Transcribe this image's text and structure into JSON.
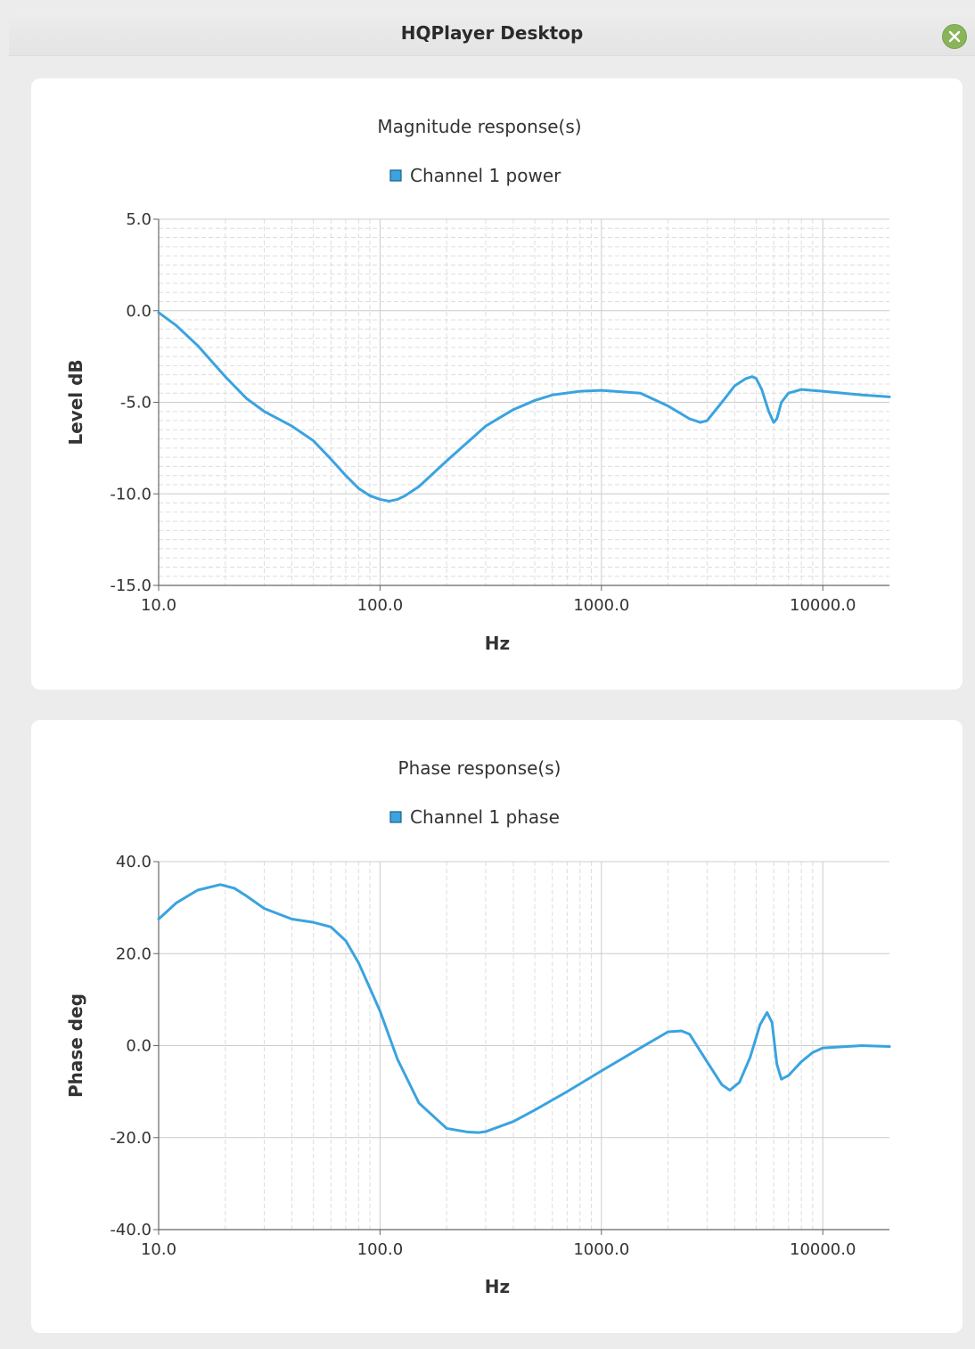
{
  "window": {
    "title": "HQPlayer Desktop"
  },
  "colors": {
    "series": "#3aa3e0",
    "grid_minor": "#dddddd",
    "grid_major": "#cccccc",
    "axis": "#666666"
  },
  "chart_data": [
    {
      "type": "line",
      "title": "Magnitude response(s)",
      "xlabel": "Hz",
      "ylabel": "Level dB",
      "xscale": "log",
      "xlim": [
        10,
        20000
      ],
      "ylim": [
        -15,
        5
      ],
      "xticks": [
        10,
        100,
        1000,
        10000
      ],
      "xtick_labels": [
        "10.0",
        "100.0",
        "1000.0",
        "10000.0"
      ],
      "yticks": [
        5,
        0,
        -5,
        -10,
        -15
      ],
      "ytick_labels": [
        "5.0",
        "0.0",
        "-5.0",
        "-10.0",
        "-15.0"
      ],
      "grid": "on (dense minor grid)",
      "legend_position": "top-center",
      "series": [
        {
          "name": "Channel 1 power",
          "color": "#3aa3e0",
          "x": [
            10,
            12,
            15,
            20,
            25,
            30,
            40,
            50,
            60,
            70,
            80,
            90,
            100,
            110,
            120,
            130,
            150,
            200,
            300,
            400,
            500,
            600,
            800,
            1000,
            1500,
            2000,
            2500,
            2800,
            3000,
            3500,
            4000,
            4500,
            4800,
            5000,
            5300,
            5700,
            6000,
            6200,
            6500,
            7000,
            8000,
            10000,
            15000,
            20000
          ],
          "y": [
            -0.1,
            -0.8,
            -1.9,
            -3.6,
            -4.8,
            -5.5,
            -6.3,
            -7.1,
            -8.1,
            -9.0,
            -9.7,
            -10.1,
            -10.3,
            -10.4,
            -10.3,
            -10.1,
            -9.6,
            -8.2,
            -6.3,
            -5.4,
            -4.9,
            -4.6,
            -4.4,
            -4.35,
            -4.5,
            -5.2,
            -5.9,
            -6.1,
            -6.0,
            -5.0,
            -4.1,
            -3.7,
            -3.6,
            -3.7,
            -4.3,
            -5.5,
            -6.1,
            -5.9,
            -5.0,
            -4.5,
            -4.3,
            -4.4,
            -4.6,
            -4.7
          ]
        }
      ]
    },
    {
      "type": "line",
      "title": "Phase response(s)",
      "xlabel": "Hz",
      "ylabel": "Phase deg",
      "xscale": "log",
      "xlim": [
        10,
        20000
      ],
      "ylim": [
        -40,
        40
      ],
      "xticks": [
        10,
        100,
        1000,
        10000
      ],
      "xtick_labels": [
        "10.0",
        "100.0",
        "1000.0",
        "10000.0"
      ],
      "yticks": [
        40,
        20,
        0,
        -20,
        -40
      ],
      "ytick_labels": [
        "40.0",
        "20.0",
        "0.0",
        "-20.0",
        "-40.0"
      ],
      "grid": "on (vertical decade lines dashed)",
      "legend_position": "top-center",
      "series": [
        {
          "name": "Channel 1 phase",
          "color": "#3aa3e0",
          "x": [
            10,
            12,
            15,
            19,
            22,
            25,
            30,
            40,
            50,
            60,
            70,
            80,
            90,
            100,
            110,
            120,
            150,
            200,
            250,
            280,
            300,
            400,
            500,
            700,
            1000,
            1500,
            2000,
            2300,
            2500,
            3000,
            3500,
            3800,
            4200,
            4700,
            5200,
            5600,
            5900,
            6200,
            6500,
            7000,
            8000,
            9000,
            10000,
            15000,
            20000
          ],
          "y": [
            27.5,
            31,
            33.8,
            35,
            34.2,
            32.5,
            29.8,
            27.5,
            26.8,
            25.8,
            22.8,
            18,
            12.5,
            7.5,
            2,
            -3,
            -12.5,
            -18,
            -18.8,
            -18.9,
            -18.7,
            -16.5,
            -14,
            -10,
            -5.5,
            -0.5,
            3,
            3.2,
            2.5,
            -3.5,
            -8.5,
            -9.7,
            -8,
            -2.5,
            4.5,
            7.2,
            5,
            -4,
            -7.3,
            -6.5,
            -3.5,
            -1.5,
            -0.5,
            0,
            -0.2
          ]
        }
      ]
    }
  ]
}
